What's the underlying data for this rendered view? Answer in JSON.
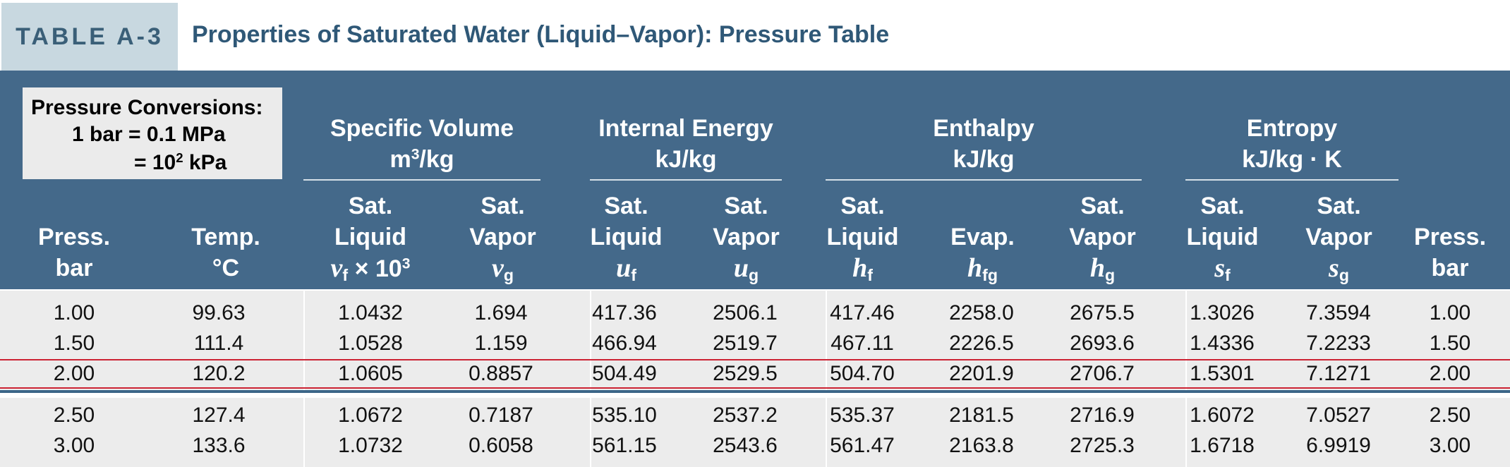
{
  "title": {
    "tag": "TABLE A-3",
    "text": "Properties of Saturated Water (Liquid–Vapor): Pressure Table"
  },
  "conversions": {
    "heading": "Pressure Conversions:",
    "line1": "1 bar = 0.1 MPa",
    "line2_prefix": "= 10",
    "line2_exp": "2",
    "line2_suffix": " kPa"
  },
  "groups": {
    "specific_volume": {
      "name": "Specific Volume",
      "unit_base": "m",
      "unit_exp": "3",
      "unit_rest": "/kg"
    },
    "internal_energy": {
      "name": "Internal Energy",
      "unit": "kJ/kg"
    },
    "enthalpy": {
      "name": "Enthalpy",
      "unit": "kJ/kg"
    },
    "entropy": {
      "name": "Entropy",
      "unit": "kJ/kg · K"
    }
  },
  "columns": {
    "press_left": {
      "l1": "Press.",
      "l2": "bar"
    },
    "temp": {
      "l1": "Temp.",
      "l2": "°C"
    },
    "vf": {
      "l1": "Sat.",
      "l2": "Liquid",
      "sym": "v",
      "sub": "f",
      "extra": " × 10",
      "exp": "3"
    },
    "vg": {
      "l1": "Sat.",
      "l2": "Vapor",
      "sym": "v",
      "sub": "g"
    },
    "uf": {
      "l1": "Sat.",
      "l2": "Liquid",
      "sym": "u",
      "sub": "f"
    },
    "ug": {
      "l1": "Sat.",
      "l2": "Vapor",
      "sym": "u",
      "sub": "g"
    },
    "hf": {
      "l1": "Sat.",
      "l2": "Liquid",
      "sym": "h",
      "sub": "f"
    },
    "hfg": {
      "l1": "Evap.",
      "sym": "h",
      "sub": "fg"
    },
    "hg": {
      "l1": "Sat.",
      "l2": "Vapor",
      "sym": "h",
      "sub": "g"
    },
    "sf": {
      "l1": "Sat.",
      "l2": "Liquid",
      "sym": "s",
      "sub": "f"
    },
    "sg": {
      "l1": "Sat.",
      "l2": "Vapor",
      "sym": "s",
      "sub": "g"
    },
    "press_right": {
      "l1": "Press.",
      "l2": "bar"
    }
  },
  "rows": [
    [
      "1.00",
      "99.63",
      "1.0432",
      "1.694",
      "417.36",
      "2506.1",
      "417.46",
      "2258.0",
      "2675.5",
      "1.3026",
      "7.3594",
      "1.00"
    ],
    [
      "1.50",
      "111.4",
      "1.0528",
      "1.159",
      "466.94",
      "2519.7",
      "467.11",
      "2226.5",
      "2693.6",
      "1.4336",
      "7.2233",
      "1.50"
    ],
    [
      "2.00",
      "120.2",
      "1.0605",
      "0.8857",
      "504.49",
      "2529.5",
      "504.70",
      "2201.9",
      "2706.7",
      "1.5301",
      "7.1271",
      "2.00"
    ],
    [
      "2.50",
      "127.4",
      "1.0672",
      "0.7187",
      "535.10",
      "2537.2",
      "535.37",
      "2181.5",
      "2716.9",
      "1.6072",
      "7.0527",
      "2.50"
    ],
    [
      "3.00",
      "133.6",
      "1.0732",
      "0.6058",
      "561.15",
      "2543.6",
      "561.47",
      "2163.8",
      "2725.3",
      "1.6718",
      "6.9919",
      "3.00"
    ]
  ],
  "colors": {
    "header_bg": "#44698a",
    "title_color": "#2f5877",
    "tag_bg": "#c8d8e0",
    "body_bg": "#ececec",
    "highlight_line": "#cc2233"
  }
}
